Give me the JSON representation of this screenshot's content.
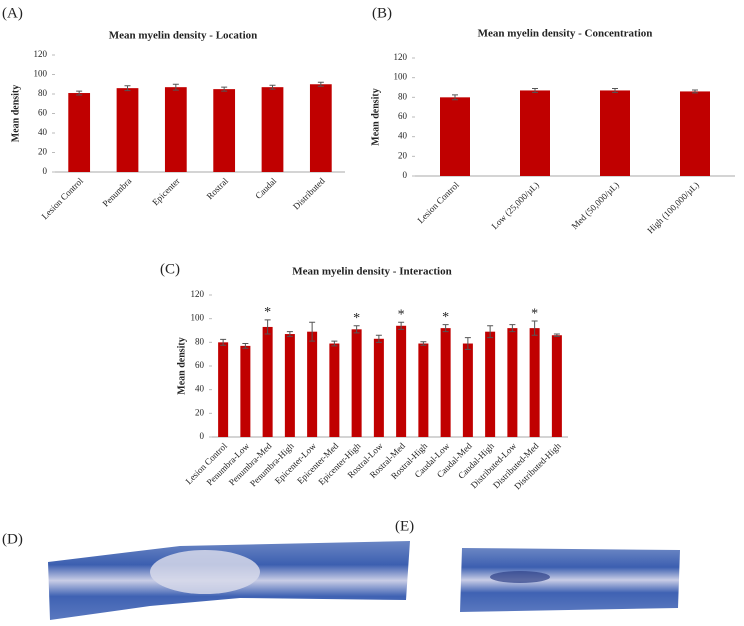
{
  "chart_data": [
    {
      "type": "bar",
      "panel": "(A)",
      "title": "Mean myelin density - Location",
      "y_label": "Mean density",
      "categories": [
        "Lesion Control",
        "Penumbra",
        "Epicenter",
        "Rostral",
        "Caudal",
        "Distributed"
      ],
      "values": [
        81,
        86,
        87,
        85,
        87,
        90
      ],
      "errors": [
        2,
        2.5,
        3,
        2,
        2,
        2
      ],
      "color": "#c00000",
      "ylim": [
        0,
        120
      ],
      "yticks": [
        0,
        20,
        40,
        60,
        80,
        100,
        120
      ]
    },
    {
      "type": "bar",
      "panel": "(B)",
      "title": "Mean myelin density - Concentration",
      "y_label": "Mean density",
      "categories": [
        "Lesion Control",
        "Low (25,000/µL)",
        "Med (50,000/µL)",
        "High (100,000/µL)"
      ],
      "values": [
        80,
        87,
        87,
        86
      ],
      "errors": [
        2.5,
        2,
        2,
        1.5
      ],
      "color": "#c00000",
      "ylim": [
        0,
        120
      ],
      "yticks": [
        0,
        20,
        40,
        60,
        80,
        100,
        120
      ]
    },
    {
      "type": "bar",
      "panel": "(C)",
      "title": "Mean myelin density - Interaction",
      "y_label": "Mean density",
      "categories": [
        "Lesion Control",
        "Penumbra-Low",
        "Penumbra-Med",
        "Penumbra-High",
        "Epicenter-Low",
        "Epicenter-Med",
        "Epicenter-High",
        "Rostral-Low",
        "Rostral-Med",
        "Rostral-High",
        "Caudal-Low",
        "Caudal-Med",
        "Caudal-High",
        "Distributed-Low",
        "Distributed-Med",
        "Distributed-High"
      ],
      "values": [
        80,
        77,
        93,
        87,
        89,
        79,
        91,
        83,
        94,
        79,
        92,
        79,
        89,
        92,
        92,
        86
      ],
      "errors": [
        2.5,
        2,
        6,
        2,
        8,
        2,
        3,
        3,
        3,
        1.5,
        3,
        5,
        5,
        3,
        6,
        1
      ],
      "color": "#c00000",
      "ylim": [
        0,
        120
      ],
      "yticks": [
        0,
        20,
        40,
        60,
        80,
        100,
        120
      ],
      "annotations": [
        {
          "text": "*",
          "x": "Penumbra-Med"
        },
        {
          "text": "*",
          "x": "Epicenter-High"
        },
        {
          "text": "*",
          "x": "Rostral-Med"
        },
        {
          "text": "*",
          "x": "Caudal-Low"
        },
        {
          "text": "*",
          "x": "Distributed-Med"
        }
      ]
    }
  ],
  "images": [
    {
      "label": "(D)"
    },
    {
      "label": "(E)"
    }
  ]
}
